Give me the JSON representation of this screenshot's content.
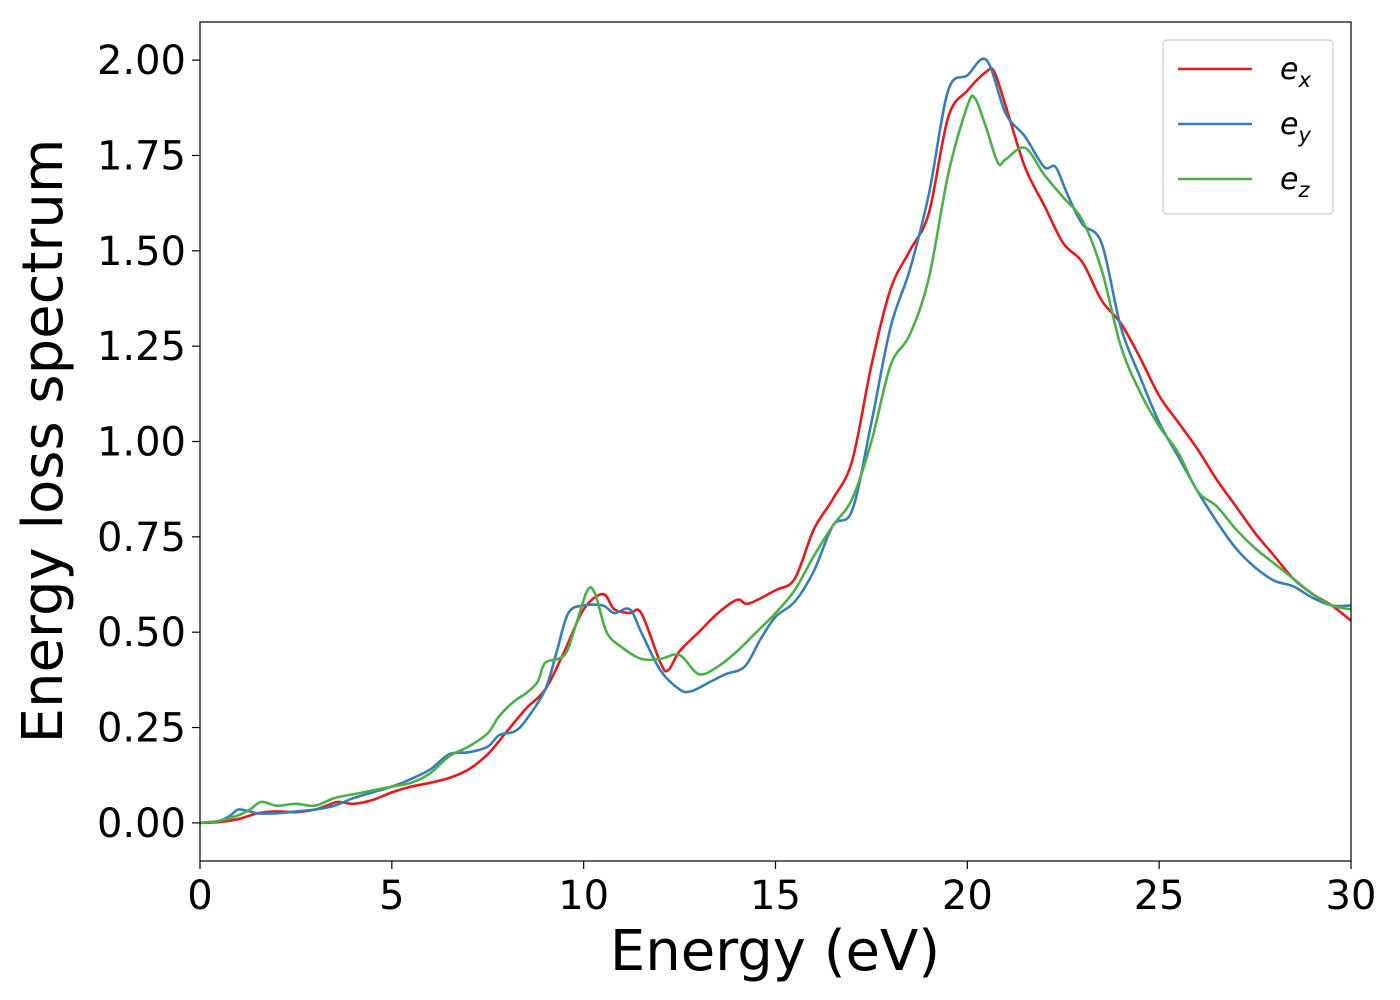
{
  "chart_data": {
    "type": "line",
    "title": "",
    "xlabel": "Energy (eV)",
    "ylabel": "Energy loss spectrum",
    "xlim": [
      0,
      30
    ],
    "ylim": [
      -0.1,
      2.1
    ],
    "xticks": [
      0,
      5,
      10,
      15,
      20,
      25,
      30
    ],
    "xtick_labels": [
      "0",
      "5",
      "10",
      "15",
      "20",
      "25",
      "30"
    ],
    "yticks": [
      0.0,
      0.25,
      0.5,
      0.75,
      1.0,
      1.25,
      1.5,
      1.75,
      2.0
    ],
    "ytick_labels": [
      "0.00",
      "0.25",
      "0.50",
      "0.75",
      "1.00",
      "1.25",
      "1.50",
      "1.75",
      "2.00"
    ],
    "grid": false,
    "legend_position": "top-right",
    "series": [
      {
        "name": "e_x",
        "base": "e",
        "sub": "x",
        "color": "#e41a1c",
        "points": [
          [
            0,
            0
          ],
          [
            0.5,
            0.002
          ],
          [
            1,
            0.01
          ],
          [
            1.5,
            0.025
          ],
          [
            2,
            0.03
          ],
          [
            2.5,
            0.028
          ],
          [
            3,
            0.035
          ],
          [
            3.3,
            0.045
          ],
          [
            3.6,
            0.055
          ],
          [
            4,
            0.05
          ],
          [
            4.5,
            0.06
          ],
          [
            5,
            0.08
          ],
          [
            5.5,
            0.095
          ],
          [
            6,
            0.105
          ],
          [
            6.5,
            0.118
          ],
          [
            7,
            0.14
          ],
          [
            7.5,
            0.18
          ],
          [
            8,
            0.24
          ],
          [
            8.5,
            0.3
          ],
          [
            9,
            0.35
          ],
          [
            9.5,
            0.45
          ],
          [
            10,
            0.56
          ],
          [
            10.5,
            0.6
          ],
          [
            10.8,
            0.56
          ],
          [
            11.2,
            0.55
          ],
          [
            11.5,
            0.55
          ],
          [
            12,
            0.42
          ],
          [
            12.2,
            0.4
          ],
          [
            12.5,
            0.45
          ],
          [
            13,
            0.5
          ],
          [
            13.5,
            0.55
          ],
          [
            14,
            0.585
          ],
          [
            14.3,
            0.575
          ],
          [
            15,
            0.61
          ],
          [
            15.5,
            0.64
          ],
          [
            16,
            0.77
          ],
          [
            16.5,
            0.85
          ],
          [
            17,
            0.95
          ],
          [
            17.5,
            1.2
          ],
          [
            18,
            1.4
          ],
          [
            18.5,
            1.5
          ],
          [
            19,
            1.6
          ],
          [
            19.5,
            1.85
          ],
          [
            20,
            1.92
          ],
          [
            20.5,
            1.97
          ],
          [
            20.7,
            1.97
          ],
          [
            21,
            1.88
          ],
          [
            21.5,
            1.72
          ],
          [
            22,
            1.62
          ],
          [
            22.5,
            1.52
          ],
          [
            23,
            1.47
          ],
          [
            23.5,
            1.37
          ],
          [
            24,
            1.31
          ],
          [
            24.5,
            1.22
          ],
          [
            25,
            1.12
          ],
          [
            25.5,
            1.05
          ],
          [
            26,
            0.98
          ],
          [
            26.5,
            0.9
          ],
          [
            27,
            0.83
          ],
          [
            27.5,
            0.76
          ],
          [
            28,
            0.7
          ],
          [
            28.5,
            0.64
          ],
          [
            29,
            0.6
          ],
          [
            29.5,
            0.57
          ],
          [
            30,
            0.53
          ]
        ]
      },
      {
        "name": "e_y",
        "base": "e",
        "sub": "y",
        "color": "#377eb8",
        "points": [
          [
            0,
            0
          ],
          [
            0.5,
            0.005
          ],
          [
            0.8,
            0.02
          ],
          [
            1,
            0.035
          ],
          [
            1.3,
            0.03
          ],
          [
            1.5,
            0.025
          ],
          [
            2,
            0.025
          ],
          [
            2.5,
            0.03
          ],
          [
            3,
            0.035
          ],
          [
            3.5,
            0.045
          ],
          [
            4,
            0.065
          ],
          [
            4.5,
            0.08
          ],
          [
            5,
            0.095
          ],
          [
            5.5,
            0.115
          ],
          [
            6,
            0.14
          ],
          [
            6.5,
            0.18
          ],
          [
            7,
            0.185
          ],
          [
            7.5,
            0.2
          ],
          [
            7.8,
            0.23
          ],
          [
            8.2,
            0.24
          ],
          [
            8.5,
            0.27
          ],
          [
            9,
            0.35
          ],
          [
            9.3,
            0.45
          ],
          [
            9.6,
            0.55
          ],
          [
            10,
            0.57
          ],
          [
            10.5,
            0.57
          ],
          [
            10.8,
            0.55
          ],
          [
            11.2,
            0.56
          ],
          [
            11.5,
            0.5
          ],
          [
            12,
            0.4
          ],
          [
            12.5,
            0.35
          ],
          [
            12.8,
            0.345
          ],
          [
            13.3,
            0.37
          ],
          [
            13.7,
            0.39
          ],
          [
            14.2,
            0.41
          ],
          [
            14.6,
            0.48
          ],
          [
            15,
            0.54
          ],
          [
            15.5,
            0.58
          ],
          [
            16,
            0.66
          ],
          [
            16.5,
            0.78
          ],
          [
            17,
            0.82
          ],
          [
            17.5,
            1.05
          ],
          [
            18,
            1.3
          ],
          [
            18.5,
            1.45
          ],
          [
            19,
            1.65
          ],
          [
            19.5,
            1.92
          ],
          [
            20,
            1.96
          ],
          [
            20.5,
            2.0
          ],
          [
            21,
            1.86
          ],
          [
            21.5,
            1.8
          ],
          [
            22,
            1.72
          ],
          [
            22.3,
            1.72
          ],
          [
            22.6,
            1.65
          ],
          [
            23,
            1.57
          ],
          [
            23.5,
            1.52
          ],
          [
            24,
            1.3
          ],
          [
            24.5,
            1.17
          ],
          [
            25,
            1.05
          ],
          [
            25.5,
            0.96
          ],
          [
            26,
            0.87
          ],
          [
            26.5,
            0.79
          ],
          [
            27,
            0.72
          ],
          [
            27.5,
            0.67
          ],
          [
            28,
            0.635
          ],
          [
            28.5,
            0.62
          ],
          [
            29,
            0.59
          ],
          [
            29.5,
            0.57
          ],
          [
            30,
            0.57
          ]
        ]
      },
      {
        "name": "e_z",
        "base": "e",
        "sub": "z",
        "color": "#4daf4a",
        "points": [
          [
            0,
            0
          ],
          [
            0.5,
            0.005
          ],
          [
            1,
            0.02
          ],
          [
            1.3,
            0.035
          ],
          [
            1.6,
            0.055
          ],
          [
            2,
            0.045
          ],
          [
            2.5,
            0.05
          ],
          [
            3,
            0.045
          ],
          [
            3.5,
            0.065
          ],
          [
            4,
            0.075
          ],
          [
            4.5,
            0.085
          ],
          [
            5,
            0.095
          ],
          [
            5.5,
            0.105
          ],
          [
            6,
            0.13
          ],
          [
            6.5,
            0.175
          ],
          [
            7,
            0.2
          ],
          [
            7.5,
            0.235
          ],
          [
            7.8,
            0.28
          ],
          [
            8.2,
            0.32
          ],
          [
            8.5,
            0.34
          ],
          [
            8.8,
            0.37
          ],
          [
            9,
            0.42
          ],
          [
            9.5,
            0.44
          ],
          [
            9.8,
            0.52
          ],
          [
            10.1,
            0.61
          ],
          [
            10.3,
            0.6
          ],
          [
            10.6,
            0.5
          ],
          [
            11,
            0.46
          ],
          [
            11.5,
            0.43
          ],
          [
            12,
            0.43
          ],
          [
            12.5,
            0.44
          ],
          [
            13,
            0.39
          ],
          [
            13.5,
            0.41
          ],
          [
            14,
            0.45
          ],
          [
            14.5,
            0.5
          ],
          [
            15,
            0.55
          ],
          [
            15.5,
            0.61
          ],
          [
            16,
            0.7
          ],
          [
            16.5,
            0.78
          ],
          [
            17,
            0.85
          ],
          [
            17.5,
            1.0
          ],
          [
            18,
            1.2
          ],
          [
            18.5,
            1.28
          ],
          [
            19,
            1.43
          ],
          [
            19.5,
            1.7
          ],
          [
            20,
            1.88
          ],
          [
            20.2,
            1.9
          ],
          [
            20.5,
            1.82
          ],
          [
            20.8,
            1.73
          ],
          [
            21,
            1.74
          ],
          [
            21.5,
            1.77
          ],
          [
            22,
            1.7
          ],
          [
            22.5,
            1.64
          ],
          [
            23,
            1.58
          ],
          [
            23.5,
            1.45
          ],
          [
            24,
            1.25
          ],
          [
            24.5,
            1.13
          ],
          [
            25,
            1.04
          ],
          [
            25.5,
            0.97
          ],
          [
            26,
            0.87
          ],
          [
            26.5,
            0.83
          ],
          [
            27,
            0.77
          ],
          [
            27.5,
            0.72
          ],
          [
            28,
            0.68
          ],
          [
            28.5,
            0.64
          ],
          [
            29,
            0.6
          ],
          [
            29.5,
            0.57
          ],
          [
            30,
            0.56
          ]
        ]
      }
    ]
  }
}
